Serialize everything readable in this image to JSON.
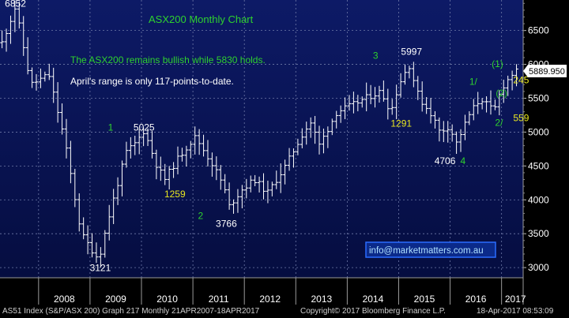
{
  "colors": {
    "background": "#000000",
    "plot_bg_top": "#0d1a66",
    "plot_bg_bottom": "#050d40",
    "grid": "#6f7aa8",
    "bars": "#ffffff",
    "green": "#2ed12e",
    "yellow": "#e8e620",
    "last_price_bg": "#ffffff",
    "last_price_text": "#000000",
    "watermark_border": "#2a6cff",
    "watermark_bg": "#0b2a8a",
    "watermark_text": "#aee0ff"
  },
  "footer": {
    "left": "AS51 Index (S&P/ASX 200)  Graph 217  Monthly 21APR2007-18APR2017",
    "center": "Copyright© 2017 Bloomberg Finance L.P.",
    "right": "18-Apr-2017 08:53:09"
  },
  "chart_data": {
    "type": "ohlc",
    "title": "ASX200 Monthly Chart",
    "subtitle": "The ASX200 remains bullish while 5830 holds.",
    "note": "April's range is only 117-points-to-date.",
    "watermark": "info@marketmatters.com.au",
    "last_price": "5889.950",
    "ylim": [
      2850,
      6950
    ],
    "y_ticks": [
      "3000",
      "3500",
      "4000",
      "4500",
      "5000",
      "5500",
      "6000",
      "6500"
    ],
    "x_years": [
      "2008",
      "2009",
      "2010",
      "2011",
      "2012",
      "2013",
      "2014",
      "2015",
      "2016",
      "2017"
    ],
    "x_start_year": 2007.25,
    "x_end_year": 2017.42,
    "anchors": [
      [
        2007.29,
        6320
      ],
      [
        2007.55,
        6852
      ],
      [
        2007.85,
        5700
      ],
      [
        2008.2,
        5850
      ],
      [
        2008.5,
        4900
      ],
      [
        2008.83,
        3500
      ],
      [
        2009.0,
        3300
      ],
      [
        2009.17,
        3121
      ],
      [
        2009.4,
        3850
      ],
      [
        2009.7,
        4700
      ],
      [
        2009.9,
        4850
      ],
      [
        2010.05,
        5025
      ],
      [
        2010.3,
        4500
      ],
      [
        2010.45,
        4300
      ],
      [
        2010.7,
        4600
      ],
      [
        2010.9,
        4800
      ],
      [
        2011.05,
        4930
      ],
      [
        2011.4,
        4500
      ],
      [
        2011.6,
        4200
      ],
      [
        2011.7,
        3900
      ],
      [
        2011.95,
        4150
      ],
      [
        2012.2,
        4300
      ],
      [
        2012.45,
        4100
      ],
      [
        2012.8,
        4500
      ],
      [
        2013.15,
        5000
      ],
      [
        2013.3,
        5150
      ],
      [
        2013.45,
        4800
      ],
      [
        2013.8,
        5300
      ],
      [
        2014.1,
        5400
      ],
      [
        2014.35,
        5500
      ],
      [
        2014.65,
        5600
      ],
      [
        2014.85,
        5300
      ],
      [
        2015.0,
        5700
      ],
      [
        2015.2,
        5997
      ],
      [
        2015.4,
        5500
      ],
      [
        2015.65,
        5250
      ],
      [
        2015.8,
        5000
      ],
      [
        2016.0,
        5100
      ],
      [
        2016.1,
        4800
      ],
      [
        2016.4,
        5300
      ],
      [
        2016.6,
        5500
      ],
      [
        2016.85,
        5300
      ],
      [
        2017.0,
        5650
      ],
      [
        2017.2,
        5850
      ],
      [
        2017.29,
        5890
      ]
    ],
    "annotations": [
      {
        "text": "6852",
        "x": 2007.55,
        "y": 6852,
        "color": "white"
      },
      {
        "text": "5025",
        "x": 2010.05,
        "y": 5025,
        "color": "white"
      },
      {
        "text": "1",
        "x": 2009.4,
        "y": 5020,
        "color": "green"
      },
      {
        "text": "1259",
        "x": 2010.65,
        "y": 4040,
        "color": "yellow"
      },
      {
        "text": "2",
        "x": 2011.15,
        "y": 3720,
        "color": "green"
      },
      {
        "text": "3766",
        "x": 2011.65,
        "y": 3600,
        "color": "white"
      },
      {
        "text": "3121",
        "x": 2009.2,
        "y": 2950,
        "color": "white"
      },
      {
        "text": "3",
        "x": 2014.55,
        "y": 6080,
        "color": "green"
      },
      {
        "text": "5997",
        "x": 2015.25,
        "y": 6140,
        "color": "white"
      },
      {
        "text": "1291",
        "x": 2015.05,
        "y": 5080,
        "color": "yellow"
      },
      {
        "text": "4706",
        "x": 2015.9,
        "y": 4530,
        "color": "white"
      },
      {
        "text": "4",
        "x": 2016.25,
        "y": 4530,
        "color": "green"
      },
      {
        "text": "1/",
        "x": 2016.45,
        "y": 5700,
        "color": "green"
      },
      {
        "text": "(1)",
        "x": 2016.92,
        "y": 5960,
        "color": "green"
      },
      {
        "text": "(2)",
        "x": 2017.0,
        "y": 5530,
        "color": "green"
      },
      {
        "text": "2/",
        "x": 2016.95,
        "y": 5090,
        "color": "green"
      },
      {
        "text": "245",
        "x": 2017.38,
        "y": 5720,
        "color": "yellow"
      },
      {
        "text": "559",
        "x": 2017.38,
        "y": 5160,
        "color": "yellow"
      }
    ]
  }
}
